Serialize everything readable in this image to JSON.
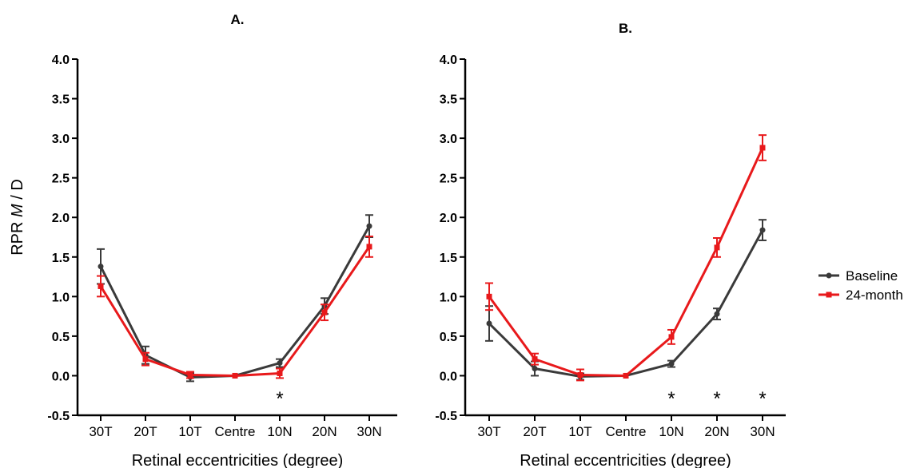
{
  "ylabel": {
    "prefix": "RPR ",
    "italic": "M",
    "suffix": " / D"
  },
  "legend": [
    {
      "name": "Baseline",
      "color": "#3a3a3a",
      "marker": "circle"
    },
    {
      "name": "24-month",
      "color": "#e8191b",
      "marker": "square"
    }
  ],
  "chart_data": [
    {
      "type": "line",
      "title": "A.",
      "categories": [
        "30T",
        "20T",
        "10T",
        "Centre",
        "10N",
        "20N",
        "30N"
      ],
      "xlabel": "Retinal eccentricities (degree)",
      "ylabel": "RPR M / D",
      "ylim": [
        -0.5,
        4.0
      ],
      "yticks": [
        "-0.5",
        "0.0",
        "0.5",
        "1.0",
        "1.5",
        "2.0",
        "2.5",
        "3.0",
        "3.5",
        "4.0"
      ],
      "series": [
        {
          "name": "Baseline",
          "color": "#3a3a3a",
          "values": [
            1.38,
            0.26,
            -0.02,
            0.0,
            0.16,
            0.88,
            1.89
          ],
          "error": [
            0.22,
            0.11,
            0.05,
            0.0,
            0.05,
            0.1,
            0.14
          ]
        },
        {
          "name": "24-month",
          "color": "#e8191b",
          "values": [
            1.13,
            0.21,
            0.01,
            0.0,
            0.03,
            0.8,
            1.63
          ],
          "error": [
            0.13,
            0.08,
            0.04,
            0.0,
            0.06,
            0.1,
            0.13
          ]
        }
      ],
      "significance": [
        {
          "category": "10N",
          "label": "*"
        }
      ]
    },
    {
      "type": "line",
      "title": "B.",
      "categories": [
        "30T",
        "20T",
        "10T",
        "Centre",
        "10N",
        "20N",
        "30N"
      ],
      "xlabel": "Retinal eccentricities (degree)",
      "ylabel": "RPR M / D",
      "ylim": [
        -0.5,
        4.0
      ],
      "yticks": [
        "-0.5",
        "0.0",
        "0.5",
        "1.0",
        "1.5",
        "2.0",
        "2.5",
        "3.0",
        "3.5",
        "4.0"
      ],
      "series": [
        {
          "name": "Baseline",
          "color": "#3a3a3a",
          "values": [
            0.66,
            0.09,
            -0.01,
            0.0,
            0.15,
            0.78,
            1.84
          ],
          "error": [
            0.22,
            0.09,
            0.04,
            0.0,
            0.04,
            0.07,
            0.13
          ]
        },
        {
          "name": "24-month",
          "color": "#e8191b",
          "values": [
            1.0,
            0.21,
            0.01,
            0.0,
            0.49,
            1.62,
            2.88
          ],
          "error": [
            0.17,
            0.07,
            0.07,
            0.0,
            0.09,
            0.12,
            0.16
          ]
        }
      ],
      "significance": [
        {
          "category": "10N",
          "label": "*"
        },
        {
          "category": "20N",
          "label": "*"
        },
        {
          "category": "30N",
          "label": "*"
        }
      ]
    }
  ]
}
